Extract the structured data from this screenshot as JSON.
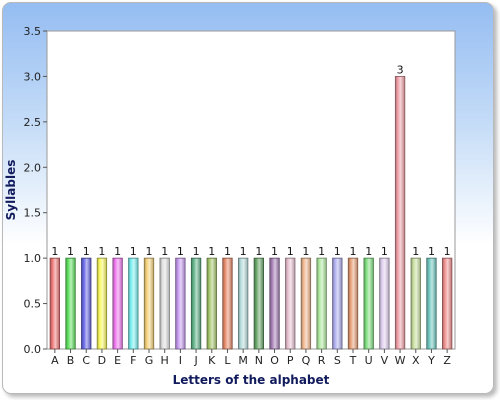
{
  "chart_data": {
    "type": "bar",
    "title": "",
    "xlabel": "Letters of the alphabet",
    "ylabel": "Syllables",
    "ylim": [
      0,
      3.5
    ],
    "ytick_step": 0.5,
    "yticks": [
      "0.0",
      "0.5",
      "1.0",
      "1.5",
      "2.0",
      "2.5",
      "3.0",
      "3.5"
    ],
    "grid": false,
    "legend": "none",
    "categories": [
      "A",
      "B",
      "C",
      "D",
      "E",
      "F",
      "G",
      "H",
      "I",
      "J",
      "K",
      "L",
      "M",
      "N",
      "O",
      "P",
      "Q",
      "R",
      "S",
      "T",
      "U",
      "V",
      "W",
      "X",
      "Y",
      "Z"
    ],
    "values": [
      1,
      1,
      1,
      1,
      1,
      1,
      1,
      1,
      1,
      1,
      1,
      1,
      1,
      1,
      1,
      1,
      1,
      1,
      1,
      1,
      1,
      1,
      3,
      1,
      1,
      1
    ],
    "data_labels": [
      "1",
      "1",
      "1",
      "1",
      "1",
      "1",
      "1",
      "1",
      "1",
      "1",
      "1",
      "1",
      "1",
      "1",
      "1",
      "1",
      "1",
      "1",
      "1",
      "1",
      "1",
      "1",
      "3",
      "1",
      "1",
      "1"
    ],
    "bar_colors": [
      "#f07a7a",
      "#5fe35f",
      "#6a6ae8",
      "#f8f85e",
      "#f07af0",
      "#7af0f0",
      "#f5d27a",
      "#e0e0e0",
      "#c79af0",
      "#62b48a",
      "#a8c86e",
      "#e88c6c",
      "#b8dcdc",
      "#6aa86a",
      "#a880b8",
      "#e8c0d0",
      "#f0b890",
      "#b0e8a0",
      "#b0b0f0",
      "#e8a078",
      "#80e080",
      "#e0d0f0",
      "#f0a0a8",
      "#c8e0a0",
      "#70c8c0",
      "#f09090"
    ]
  }
}
